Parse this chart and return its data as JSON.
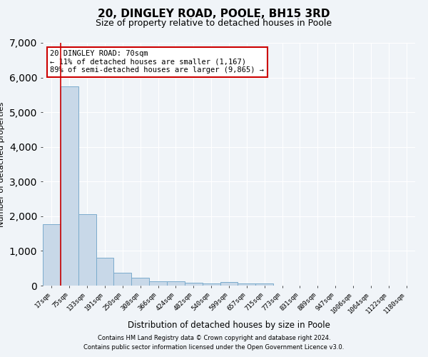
{
  "title": "20, DINGLEY ROAD, POOLE, BH15 3RD",
  "subtitle": "Size of property relative to detached houses in Poole",
  "xlabel": "Distribution of detached houses by size in Poole",
  "ylabel": "Number of detached properties",
  "categories": [
    "17sqm",
    "75sqm",
    "133sqm",
    "191sqm",
    "250sqm",
    "308sqm",
    "366sqm",
    "424sqm",
    "482sqm",
    "540sqm",
    "599sqm",
    "657sqm",
    "715sqm",
    "773sqm",
    "831sqm",
    "889sqm",
    "947sqm",
    "1006sqm",
    "1064sqm",
    "1122sqm",
    "1180sqm"
  ],
  "values": [
    1780,
    5750,
    2060,
    810,
    380,
    230,
    130,
    120,
    90,
    70,
    100,
    65,
    55,
    0,
    0,
    0,
    0,
    0,
    0,
    0,
    0
  ],
  "bar_color": "#c8d8e8",
  "bar_edgecolor": "#7aabcc",
  "annotation_box_text": "20 DINGLEY ROAD: 70sqm\n← 11% of detached houses are smaller (1,167)\n89% of semi-detached houses are larger (9,865) →",
  "box_edgecolor": "#cc0000",
  "ylim": [
    0,
    7000
  ],
  "yticks": [
    0,
    1000,
    2000,
    3000,
    4000,
    5000,
    6000,
    7000
  ],
  "footnote1": "Contains HM Land Registry data © Crown copyright and database right 2024.",
  "footnote2": "Contains public sector information licensed under the Open Government Licence v3.0.",
  "bg_color": "#f0f4f8",
  "grid_color": "#ffffff",
  "vline_color": "#cc0000",
  "vline_index": 0.5,
  "title_fontsize": 11,
  "subtitle_fontsize": 9,
  "ylabel_fontsize": 8,
  "xlabel_fontsize": 8.5,
  "tick_fontsize": 6.5,
  "annot_fontsize": 7.5,
  "footnote_fontsize": 6
}
